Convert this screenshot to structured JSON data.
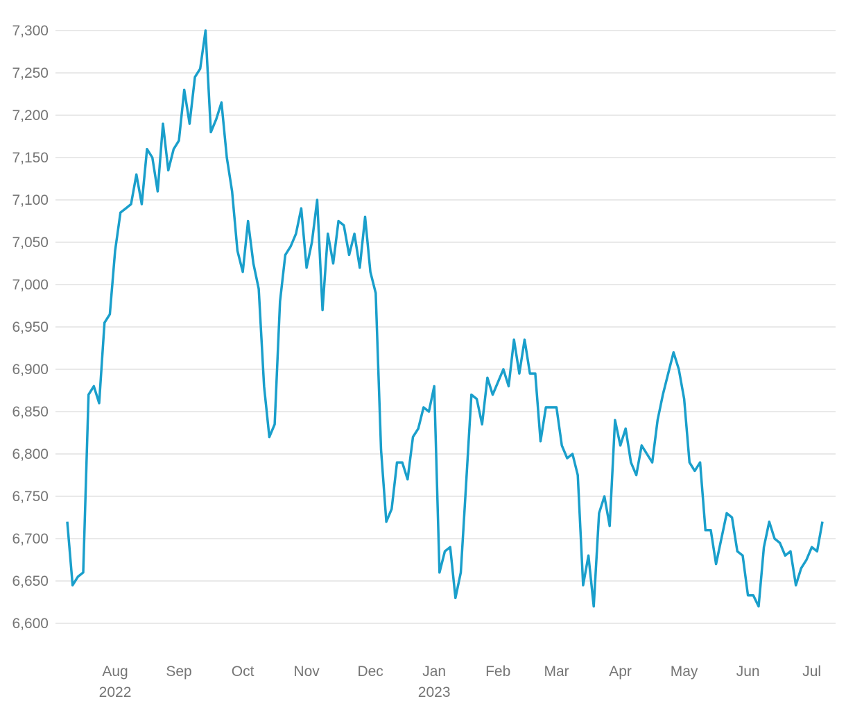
{
  "chart_data": {
    "type": "line",
    "categories": [
      null,
      null,
      null,
      null,
      null,
      null,
      null,
      null,
      null,
      "Aug\n2022",
      null,
      null,
      null,
      null,
      null,
      null,
      null,
      null,
      null,
      null,
      null,
      "Sep",
      null,
      null,
      null,
      null,
      null,
      null,
      null,
      null,
      null,
      null,
      null,
      "Oct",
      null,
      null,
      null,
      null,
      null,
      null,
      null,
      null,
      null,
      null,
      null,
      "Nov",
      null,
      null,
      null,
      null,
      null,
      null,
      null,
      null,
      null,
      null,
      null,
      "Dec",
      null,
      null,
      null,
      null,
      null,
      null,
      null,
      null,
      null,
      null,
      null,
      "Jan\n2023",
      null,
      null,
      null,
      null,
      null,
      null,
      null,
      null,
      null,
      null,
      null,
      "Feb",
      null,
      null,
      null,
      null,
      null,
      null,
      null,
      null,
      null,
      null,
      "Mar",
      null,
      null,
      null,
      null,
      null,
      null,
      null,
      null,
      null,
      null,
      null,
      "Apr",
      null,
      null,
      null,
      null,
      null,
      null,
      null,
      null,
      null,
      null,
      null,
      "May",
      null,
      null,
      null,
      null,
      null,
      null,
      null,
      null,
      null,
      null,
      null,
      "Jun",
      null,
      null,
      null,
      null,
      null,
      null,
      null,
      null,
      null,
      null,
      null,
      "Jul",
      null,
      null
    ],
    "values": [
      6720,
      6645,
      6655,
      6660,
      6870,
      6880,
      6860,
      6955,
      6965,
      7040,
      7085,
      7090,
      7095,
      7130,
      7095,
      7160,
      7150,
      7110,
      7190,
      7135,
      7160,
      7170,
      7230,
      7190,
      7245,
      7255,
      7300,
      7180,
      7195,
      7215,
      7150,
      7110,
      7040,
      7015,
      7075,
      7025,
      6995,
      6880,
      6820,
      6835,
      6980,
      7035,
      7045,
      7060,
      7090,
      7020,
      7050,
      7100,
      6970,
      7060,
      7025,
      7075,
      7070,
      7035,
      7060,
      7020,
      7080,
      7015,
      6990,
      6805,
      6720,
      6735,
      6790,
      6790,
      6770,
      6820,
      6830,
      6855,
      6850,
      6880,
      6660,
      6685,
      6690,
      6630,
      6660,
      6765,
      6870,
      6865,
      6835,
      6890,
      6870,
      6885,
      6900,
      6880,
      6935,
      6895,
      6935,
      6895,
      6895,
      6815,
      6855,
      6855,
      6855,
      6810,
      6795,
      6800,
      6775,
      6645,
      6680,
      6620,
      6730,
      6750,
      6715,
      6840,
      6810,
      6830,
      6790,
      6775,
      6810,
      6800,
      6790,
      6840,
      6870,
      6895,
      6920,
      6900,
      6865,
      6790,
      6780,
      6790,
      6710,
      6710,
      6670,
      6700,
      6730,
      6725,
      6685,
      6680,
      6633,
      6633,
      6620,
      6690,
      6720,
      6700,
      6695,
      6680,
      6685,
      6645,
      6665,
      6675,
      6690,
      6685,
      6720
    ],
    "color": "#1a9fcb",
    "ylim": [
      6560,
      7320
    ],
    "yticks": [
      {
        "value": 6600,
        "label": "6,600"
      },
      {
        "value": 6650,
        "label": "6,650"
      },
      {
        "value": 6700,
        "label": "6,700"
      },
      {
        "value": 6750,
        "label": "6,750"
      },
      {
        "value": 6800,
        "label": "6,800"
      },
      {
        "value": 6850,
        "label": "6,850"
      },
      {
        "value": 6900,
        "label": "6,900"
      },
      {
        "value": 6950,
        "label": "6,950"
      },
      {
        "value": 7000,
        "label": "7,000"
      },
      {
        "value": 7050,
        "label": "7,050"
      },
      {
        "value": 7100,
        "label": "7,100"
      },
      {
        "value": 7150,
        "label": "7,150"
      },
      {
        "value": 7200,
        "label": "7,200"
      },
      {
        "value": 7250,
        "label": "7,250"
      },
      {
        "value": 7300,
        "label": "7,300"
      }
    ],
    "grid": true
  }
}
